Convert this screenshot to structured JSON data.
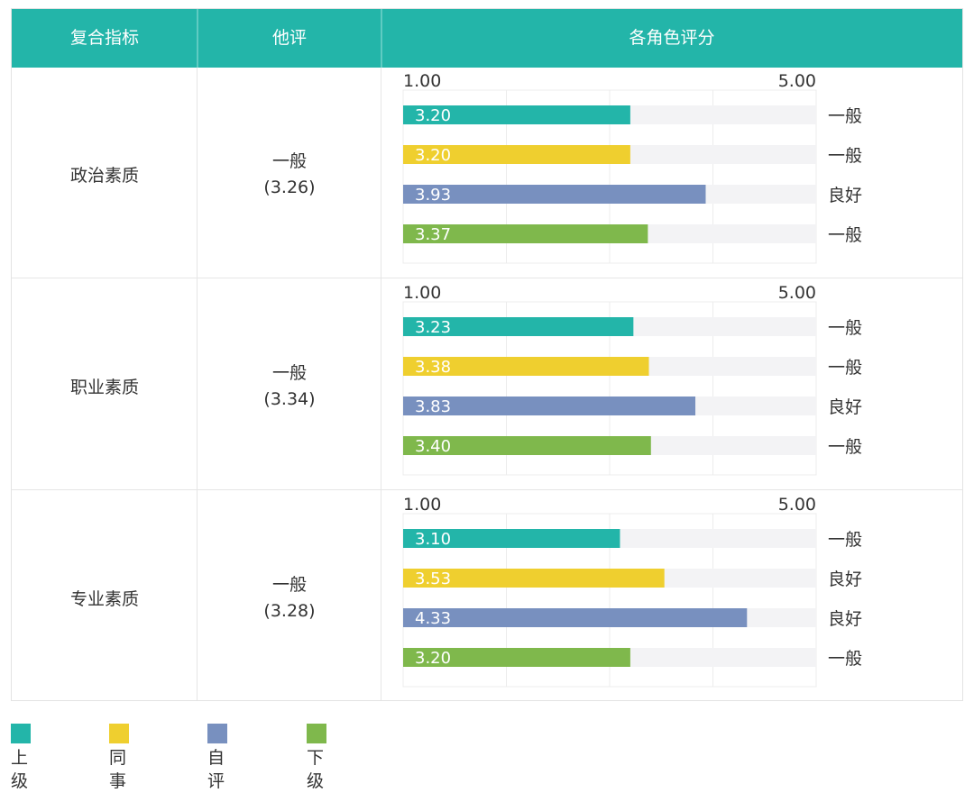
{
  "header": {
    "col1": "复合指标",
    "col2": "他评",
    "col3": "各角色评分"
  },
  "chart_data": {
    "type": "bar",
    "orientation": "horizontal",
    "xlim": [
      1.0,
      5.0
    ],
    "axis_min_label": "1.00",
    "axis_max_label": "5.00",
    "grid": true,
    "legend_position": "bottom-left",
    "series_names": [
      "上级",
      "同事",
      "自评",
      "下级"
    ],
    "series_colors": [
      "#23b5a9",
      "#efcf2f",
      "#7890bf",
      "#7fb84c"
    ],
    "track_color": "#f3f3f5",
    "groups": [
      {
        "category": "政治素质",
        "other_rating": "一般",
        "other_score": "(3.26)",
        "values": [
          3.2,
          3.2,
          3.93,
          3.37
        ],
        "value_labels": [
          "3.20",
          "3.20",
          "3.93",
          "3.37"
        ],
        "levels": [
          "一般",
          "一般",
          "良好",
          "一般"
        ]
      },
      {
        "category": "职业素质",
        "other_rating": "一般",
        "other_score": "(3.34)",
        "values": [
          3.23,
          3.38,
          3.83,
          3.4
        ],
        "value_labels": [
          "3.23",
          "3.38",
          "3.83",
          "3.40"
        ],
        "levels": [
          "一般",
          "一般",
          "良好",
          "一般"
        ]
      },
      {
        "category": "专业素质",
        "other_rating": "一般",
        "other_score": "(3.28)",
        "values": [
          3.1,
          3.53,
          4.33,
          3.2
        ],
        "value_labels": [
          "3.10",
          "3.53",
          "4.33",
          "3.20"
        ],
        "levels": [
          "一般",
          "良好",
          "良好",
          "一般"
        ]
      }
    ]
  },
  "legend": {
    "items": [
      "上级",
      "同事",
      "自评",
      "下级"
    ]
  }
}
